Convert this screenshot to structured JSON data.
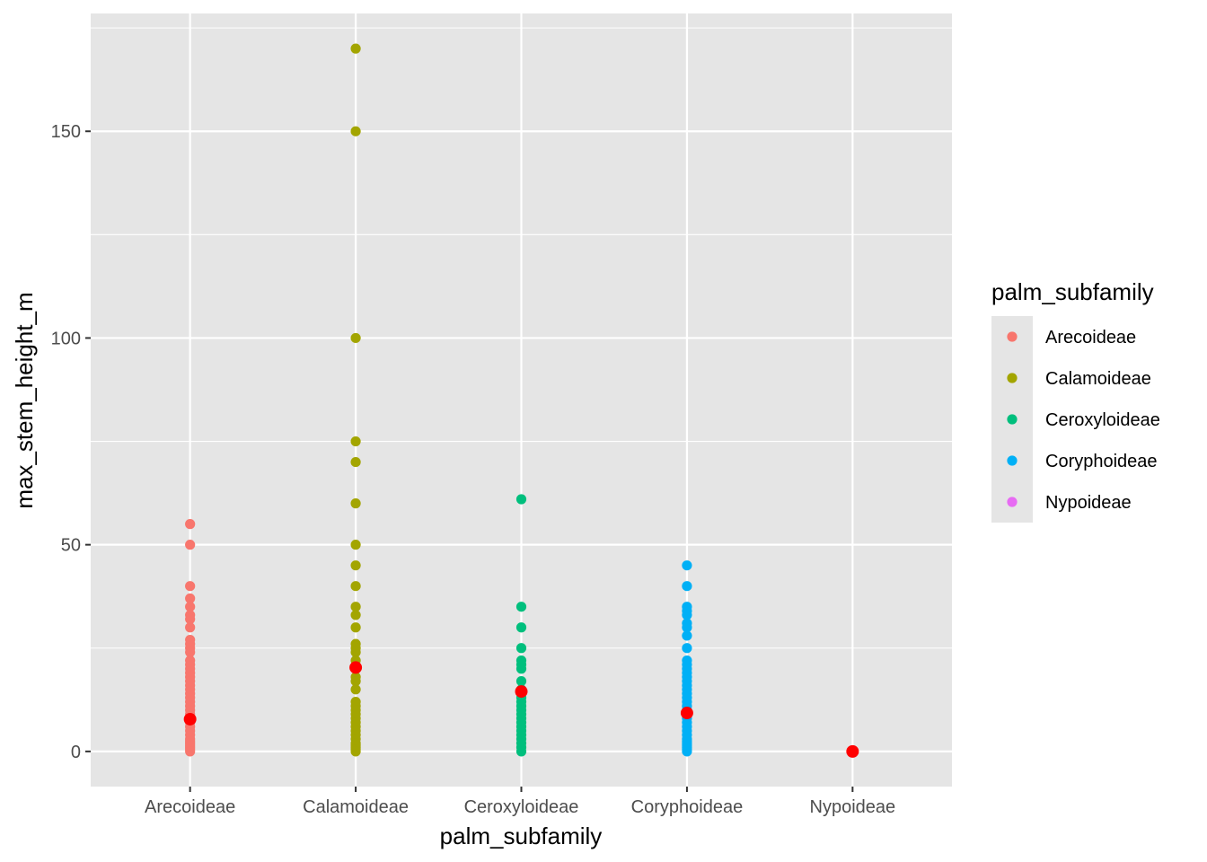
{
  "chart_data": {
    "type": "scatter",
    "xlabel": "palm_subfamily",
    "ylabel": "max_stem_height_m",
    "categories": [
      "Arecoideae",
      "Calamoideae",
      "Ceroxyloideae",
      "Coryphoideae",
      "Nypoideae"
    ],
    "ylim": [
      -8.5,
      178.5
    ],
    "yticks": [
      0,
      50,
      100,
      150
    ],
    "ytick_labels": [
      "0",
      "50",
      "100",
      "150"
    ],
    "grid": true,
    "legend": {
      "title": "palm_subfamily",
      "position": "right",
      "entries": [
        "Arecoideae",
        "Calamoideae",
        "Ceroxyloideae",
        "Coryphoideae",
        "Nypoideae"
      ]
    },
    "colors": {
      "Arecoideae": "#F8766D",
      "Calamoideae": "#A3A500",
      "Ceroxyloideae": "#00BF7D",
      "Coryphoideae": "#00B0F6",
      "Nypoideae": "#E76BF3",
      "mean_marker": "#FF0000",
      "panel_background": "#E5E5E5",
      "grid": "#FFFFFF"
    },
    "series": [
      {
        "name": "Arecoideae",
        "values": [
          55,
          50,
          40,
          37,
          35,
          33,
          32,
          30,
          27,
          26,
          25,
          24,
          22,
          21,
          20,
          19,
          18,
          17,
          16,
          15,
          14,
          13,
          12,
          11,
          10,
          9,
          8,
          7,
          6,
          5,
          4,
          3,
          2.5,
          2,
          1.5,
          1,
          0.5,
          0
        ]
      },
      {
        "name": "Calamoideae",
        "values": [
          170,
          150,
          100,
          75,
          70,
          60,
          50,
          45,
          40,
          35,
          33,
          30,
          26,
          25,
          24,
          22,
          20,
          18,
          17,
          15,
          12,
          11,
          10,
          9,
          8,
          7,
          6,
          5,
          4,
          3,
          2,
          1.5,
          1,
          0.5,
          0
        ]
      },
      {
        "name": "Ceroxyloideae",
        "values": [
          61,
          35,
          30,
          25,
          22,
          21,
          20,
          17,
          15,
          13,
          12,
          11,
          10,
          9,
          8,
          7,
          6,
          5,
          4,
          3,
          2,
          1,
          0
        ]
      },
      {
        "name": "Coryphoideae",
        "values": [
          45,
          40,
          35,
          34,
          33,
          31,
          30,
          28,
          25,
          22,
          21,
          20,
          19,
          18,
          17,
          16,
          15,
          14,
          13,
          12,
          11,
          10,
          9,
          8,
          7,
          6,
          5,
          4,
          3,
          2.5,
          2,
          1.5,
          1,
          0.5,
          0
        ]
      },
      {
        "name": "Nypoideae",
        "values": [
          0
        ]
      }
    ],
    "means": [
      {
        "category": "Arecoideae",
        "value": 7.8
      },
      {
        "category": "Calamoideae",
        "value": 20.3
      },
      {
        "category": "Ceroxyloideae",
        "value": 14.5
      },
      {
        "category": "Coryphoideae",
        "value": 9.3
      },
      {
        "category": "Nypoideae",
        "value": 0
      }
    ]
  }
}
